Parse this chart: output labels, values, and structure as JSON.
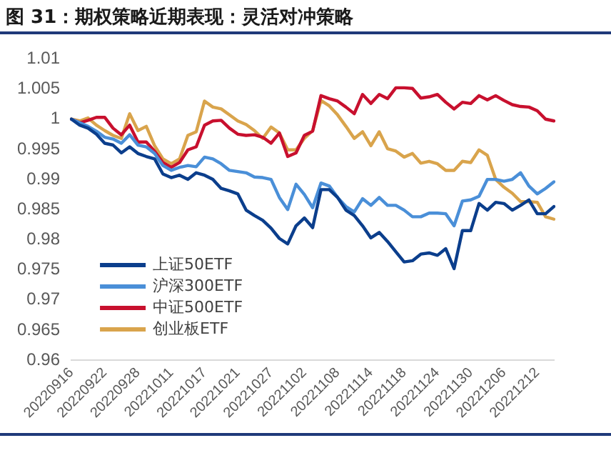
{
  "chart_data": {
    "type": "line",
    "title": "图 31：期权策略近期表现：灵活对冲策略",
    "categories": [
      "20220916",
      null,
      null,
      null,
      "20220922",
      null,
      null,
      null,
      "20220928",
      null,
      null,
      null,
      "20221011",
      null,
      null,
      null,
      "20221017",
      null,
      null,
      null,
      "20221021",
      null,
      null,
      null,
      "20221027",
      null,
      null,
      null,
      "20221102",
      null,
      null,
      null,
      "20221108",
      null,
      null,
      null,
      "20221114",
      null,
      null,
      null,
      "20221118",
      null,
      null,
      null,
      "20221124",
      null,
      null,
      null,
      "20221130",
      null,
      null,
      null,
      "20221206",
      null,
      null,
      null,
      "20221212",
      null,
      null
    ],
    "series": [
      {
        "name": "上证50ETF",
        "color": "#0b3e8c",
        "values": [
          1.0,
          0.999,
          0.9985,
          0.9975,
          0.996,
          0.9957,
          0.9944,
          0.9954,
          0.9943,
          0.9938,
          0.9934,
          0.9909,
          0.9903,
          0.9907,
          0.99,
          0.9911,
          0.9907,
          0.99,
          0.9885,
          0.9881,
          0.9876,
          0.9849,
          0.984,
          0.9832,
          0.9819,
          0.9802,
          0.9793,
          0.9823,
          0.9836,
          0.982,
          0.9883,
          0.9883,
          0.987,
          0.9849,
          0.984,
          0.9823,
          0.9803,
          0.9812,
          0.9797,
          0.978,
          0.9763,
          0.9765,
          0.9776,
          0.9778,
          0.9774,
          0.9785,
          0.9752,
          0.9815,
          0.9815,
          0.986,
          0.9849,
          0.9862,
          0.986,
          0.9849,
          0.9857,
          0.9866,
          0.9843,
          0.9843,
          0.9855
        ]
      },
      {
        "name": "沪深300ETF",
        "color": "#4a8fd8",
        "values": [
          1.0,
          0.9994,
          0.9988,
          0.998,
          0.997,
          0.9967,
          0.996,
          0.9974,
          0.9957,
          0.9954,
          0.9943,
          0.9923,
          0.9915,
          0.992,
          0.9923,
          0.9921,
          0.9937,
          0.9934,
          0.9926,
          0.9915,
          0.9913,
          0.9911,
          0.9904,
          0.9903,
          0.99,
          0.987,
          0.985,
          0.9892,
          0.9875,
          0.9853,
          0.9894,
          0.9889,
          0.987,
          0.9855,
          0.9846,
          0.9868,
          0.9857,
          0.987,
          0.9857,
          0.9857,
          0.9849,
          0.9838,
          0.9838,
          0.9844,
          0.9844,
          0.9843,
          0.9823,
          0.9864,
          0.9866,
          0.9872,
          0.99,
          0.99,
          0.9897,
          0.99,
          0.9911,
          0.9889,
          0.9876,
          0.9885,
          0.9896
        ]
      },
      {
        "name": "中证500ETF",
        "color": "#c8102e",
        "values": [
          1.0,
          0.9994,
          0.9998,
          1.0003,
          1.0003,
          0.9985,
          0.9974,
          0.999,
          0.9962,
          0.9962,
          0.9947,
          0.9928,
          0.992,
          0.9928,
          0.9949,
          0.9954,
          0.999,
          0.9997,
          0.9998,
          0.9985,
          0.9975,
          0.9973,
          0.9974,
          0.997,
          0.996,
          0.9977,
          0.9938,
          0.9944,
          0.9973,
          0.998,
          1.0039,
          1.0034,
          1.003,
          1.002,
          1.0009,
          1.0041,
          1.0026,
          1.0041,
          1.0034,
          1.0052,
          1.0052,
          1.0051,
          1.0035,
          1.0037,
          1.0041,
          1.0028,
          1.0017,
          1.0028,
          1.0026,
          1.0039,
          1.0032,
          1.0039,
          1.0031,
          1.0024,
          1.0021,
          1.002,
          1.0014,
          1.0,
          0.9997
        ]
      },
      {
        "name": "创业板ETF",
        "color": "#d9a44c",
        "values": [
          1.0,
          0.9997,
          1.0002,
          0.999,
          0.9981,
          0.9973,
          0.9968,
          1.0009,
          0.9981,
          0.9988,
          0.9956,
          0.9934,
          0.9926,
          0.9934,
          0.9973,
          0.9979,
          1.003,
          1.002,
          1.0017,
          1.0007,
          0.9997,
          0.9991,
          0.9981,
          0.9968,
          0.9987,
          0.9977,
          0.9949,
          0.9949,
          0.9968,
          0.9981,
          1.0031,
          1.0022,
          1.0007,
          0.9988,
          0.9968,
          0.9979,
          0.9956,
          0.9979,
          0.9951,
          0.9947,
          0.9937,
          0.9943,
          0.9927,
          0.993,
          0.9926,
          0.9915,
          0.9915,
          0.993,
          0.9928,
          0.9949,
          0.994,
          0.99,
          0.9887,
          0.9877,
          0.9863,
          0.9863,
          0.9862,
          0.9838,
          0.9834
        ]
      }
    ],
    "ylim": [
      0.96,
      1.01
    ],
    "yticks": [
      0.96,
      0.965,
      0.97,
      0.975,
      0.98,
      0.985,
      0.99,
      0.995,
      1,
      1.005,
      1.01
    ],
    "grid": false,
    "legend": "bottom left",
    "marker": "none",
    "line_style": "solid"
  }
}
